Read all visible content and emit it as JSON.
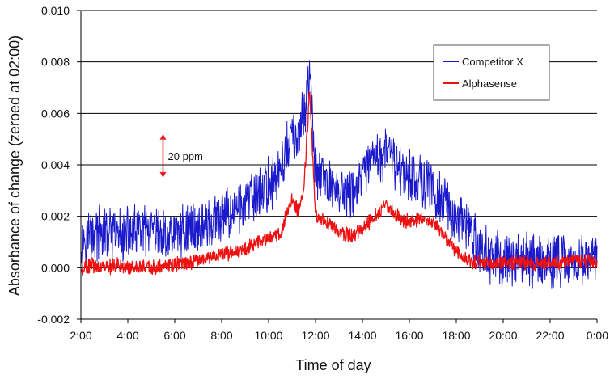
{
  "chart_data": {
    "type": "line",
    "xlabel": "Time of day",
    "ylabel": "Absorbance of change (zeroed at 02:00)",
    "xlim": [
      2,
      24
    ],
    "ylim": [
      -0.002,
      0.01
    ],
    "x_ticks": [
      {
        "value": 2,
        "label": "2:00"
      },
      {
        "value": 4,
        "label": "4:00"
      },
      {
        "value": 6,
        "label": "6:00"
      },
      {
        "value": 8,
        "label": "8:00"
      },
      {
        "value": 10,
        "label": "10:00"
      },
      {
        "value": 12,
        "label": "12:00"
      },
      {
        "value": 14,
        "label": "14:00"
      },
      {
        "value": 16,
        "label": "16:00"
      },
      {
        "value": 18,
        "label": "18:00"
      },
      {
        "value": 20,
        "label": "20:00"
      },
      {
        "value": 22,
        "label": "22:00"
      },
      {
        "value": 24,
        "label": "0:00"
      }
    ],
    "y_ticks": [
      {
        "value": -0.002,
        "label": "-0.002"
      },
      {
        "value": 0.0,
        "label": "0.000"
      },
      {
        "value": 0.002,
        "label": "0.002"
      },
      {
        "value": 0.004,
        "label": "0.004"
      },
      {
        "value": 0.006,
        "label": "0.006"
      },
      {
        "value": 0.008,
        "label": "0.008"
      },
      {
        "value": 0.01,
        "label": "0.010"
      }
    ],
    "grid": "horizontal",
    "legend_position": "top-right",
    "annotation": {
      "text": "20 ppm",
      "x": 5.5,
      "y_from": 0.0035,
      "y_to": 0.0052
    },
    "series": [
      {
        "name": "Competitor X",
        "color": "#1a1acc",
        "noise": 0.0009,
        "x": [
          2,
          2.5,
          3,
          3.5,
          4,
          4.5,
          5,
          5.5,
          6,
          6.5,
          7,
          7.5,
          8,
          8.5,
          9,
          9.5,
          10,
          10.5,
          11,
          11.25,
          11.5,
          11.75,
          12,
          12.5,
          13,
          13.5,
          14,
          14.5,
          15,
          15.5,
          16,
          16.5,
          17,
          17.5,
          18,
          18.5,
          19,
          19.5,
          20,
          20.5,
          21,
          21.5,
          22,
          22.5,
          23,
          23.5,
          24
        ],
        "y": [
          0.0012,
          0.0013,
          0.0013,
          0.0012,
          0.0013,
          0.0014,
          0.0013,
          0.0012,
          0.0013,
          0.0015,
          0.0016,
          0.0017,
          0.0019,
          0.0022,
          0.0025,
          0.0028,
          0.0032,
          0.0037,
          0.0052,
          0.0048,
          0.006,
          0.0075,
          0.0036,
          0.0033,
          0.003,
          0.0028,
          0.0035,
          0.0042,
          0.0045,
          0.004,
          0.0036,
          0.0034,
          0.003,
          0.0025,
          0.002,
          0.0015,
          0.0008,
          0.0004,
          0.0003,
          0.0003,
          0.0003,
          0.0003,
          0.0003,
          0.0003,
          0.0003,
          0.0003,
          0.0003
        ]
      },
      {
        "name": "Alphasense",
        "color": "#ee1111",
        "noise": 0.00025,
        "x": [
          2,
          2.5,
          3,
          3.5,
          4,
          4.5,
          5,
          5.5,
          6,
          6.5,
          7,
          7.5,
          8,
          8.5,
          9,
          9.5,
          10,
          10.5,
          11,
          11.25,
          11.5,
          11.75,
          12,
          12.5,
          13,
          13.5,
          14,
          14.5,
          15,
          15.5,
          16,
          16.5,
          17,
          17.5,
          18,
          18.5,
          19,
          19.5,
          20,
          20.5,
          21,
          21.5,
          22,
          22.5,
          23,
          23.5,
          24
        ],
        "y": [
          0.0,
          0.0001,
          0.0,
          0.0001,
          0.0,
          0.0,
          0.0,
          0.0001,
          0.0001,
          0.0002,
          0.0003,
          0.0004,
          0.0005,
          0.0006,
          0.0007,
          0.001,
          0.0012,
          0.0013,
          0.0027,
          0.0022,
          0.003,
          0.007,
          0.002,
          0.0018,
          0.0014,
          0.0012,
          0.0015,
          0.002,
          0.0024,
          0.002,
          0.0018,
          0.0019,
          0.0018,
          0.0012,
          0.0006,
          0.0003,
          0.0002,
          0.0002,
          0.0002,
          0.0002,
          0.0002,
          0.0002,
          0.0002,
          0.0002,
          0.0003,
          0.0003,
          0.0002
        ]
      }
    ]
  }
}
